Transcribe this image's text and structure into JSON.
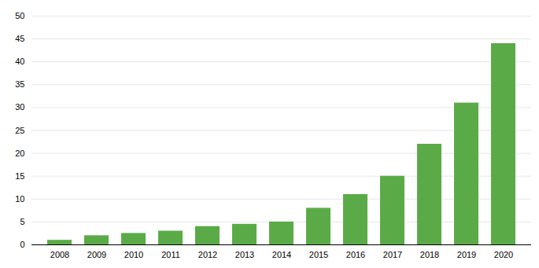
{
  "chart_data": {
    "type": "bar",
    "categories": [
      "2008",
      "2009",
      "2010",
      "2011",
      "2012",
      "2013",
      "2014",
      "2015",
      "2016",
      "2017",
      "2018",
      "2019",
      "2020"
    ],
    "values": [
      1.0,
      2.0,
      2.5,
      3.0,
      4.0,
      4.5,
      5.0,
      8.0,
      11.0,
      15.0,
      22.0,
      31.0,
      44.0
    ],
    "color": "#5aab47",
    "ylim": [
      0,
      50
    ],
    "yticks": [
      0,
      5,
      10,
      15,
      20,
      25,
      30,
      35,
      40,
      45,
      50
    ],
    "grid": true
  }
}
